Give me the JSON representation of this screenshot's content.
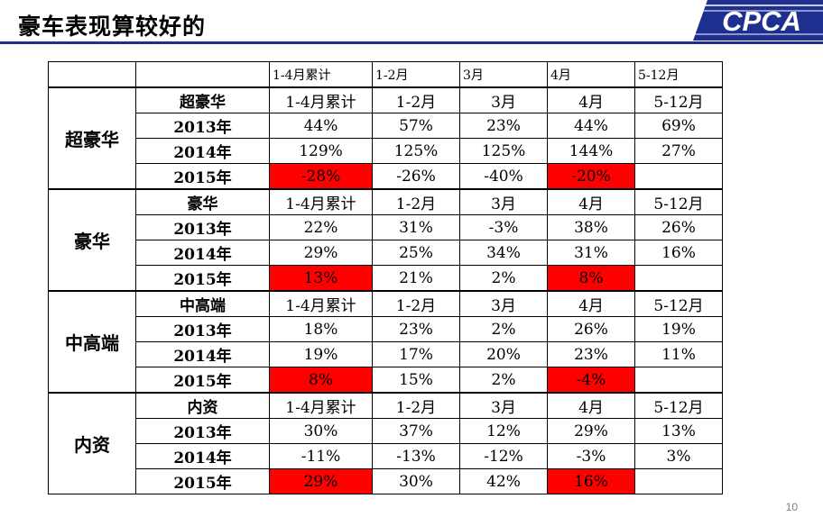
{
  "title": "豪车表现算较好的",
  "logo_text": "CPCA",
  "colors": {
    "title_rule": "#1f2f8f",
    "logo_blue": "#1f2f8f",
    "highlight": "#ff0000"
  },
  "header": [
    "",
    "",
    "1-4月累计",
    "1-2月",
    "3月",
    "4月",
    "5-12月"
  ],
  "groups": [
    {
      "name": "超豪华",
      "subheader": {
        "label": "超豪华",
        "cols": [
          "1-4月累计",
          "1-2月",
          "3月",
          "4月",
          "5-12月"
        ]
      },
      "rows": [
        {
          "year": "2013年",
          "values": [
            "44%",
            "57%",
            "23%",
            "44%",
            "69%"
          ]
        },
        {
          "year": "2014年",
          "values": [
            "129%",
            "125%",
            "125%",
            "144%",
            "27%"
          ]
        },
        {
          "year": "2015年",
          "values": [
            "-28%",
            "-26%",
            "-40%",
            "-20%",
            ""
          ]
        }
      ]
    },
    {
      "name": "豪华",
      "subheader": {
        "label": "豪华",
        "cols": [
          "1-4月累计",
          "1-2月",
          "3月",
          "4月",
          "5-12月"
        ]
      },
      "rows": [
        {
          "year": "2013年",
          "values": [
            "22%",
            "31%",
            "-3%",
            "38%",
            "26%"
          ]
        },
        {
          "year": "2014年",
          "values": [
            "29%",
            "25%",
            "34%",
            "31%",
            "16%"
          ]
        },
        {
          "year": "2015年",
          "values": [
            "13%",
            "21%",
            "2%",
            "8%",
            ""
          ]
        }
      ]
    },
    {
      "name": "中高端",
      "subheader": {
        "label": "中高端",
        "cols": [
          "1-4月累计",
          "1-2月",
          "3月",
          "4月",
          "5-12月"
        ]
      },
      "rows": [
        {
          "year": "2013年",
          "values": [
            "18%",
            "23%",
            "2%",
            "26%",
            "19%"
          ]
        },
        {
          "year": "2014年",
          "values": [
            "19%",
            "17%",
            "20%",
            "23%",
            "11%"
          ]
        },
        {
          "year": "2015年",
          "values": [
            "8%",
            "15%",
            "2%",
            "-4%",
            ""
          ]
        }
      ]
    },
    {
      "name": "内资",
      "subheader": {
        "label": "内资",
        "cols": [
          "1-4月累计",
          "1-2月",
          "3月",
          "4月",
          "5-12月"
        ]
      },
      "rows": [
        {
          "year": "2013年",
          "values": [
            "30%",
            "37%",
            "12%",
            "29%",
            "13%"
          ]
        },
        {
          "year": "2014年",
          "values": [
            "-11%",
            "-13%",
            "-12%",
            "-3%",
            "3%"
          ]
        },
        {
          "year": "2015年",
          "values": [
            "29%",
            "30%",
            "42%",
            "16%",
            ""
          ]
        }
      ]
    }
  ],
  "page_number": "10"
}
